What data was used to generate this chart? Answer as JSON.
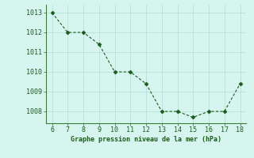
{
  "x": [
    6,
    7,
    8,
    9,
    10,
    11,
    12,
    13,
    14,
    15,
    16,
    17,
    18
  ],
  "y": [
    1013.0,
    1012.0,
    1012.0,
    1011.4,
    1010.0,
    1010.0,
    1009.4,
    1008.0,
    1008.0,
    1007.7,
    1008.0,
    1008.0,
    1009.4
  ],
  "line_color": "#1a5c1a",
  "marker": "D",
  "marker_size": 2.5,
  "bg_color": "#d6f5ef",
  "grid_color": "#b0ddd4",
  "xlabel": "Graphe pression niveau de la mer (hPa)",
  "xlabel_color": "#1a5c1a",
  "xlabel_fontsize": 6.0,
  "tick_color": "#1a5c1a",
  "tick_fontsize": 6.0,
  "xlim": [
    5.6,
    18.4
  ],
  "ylim": [
    1007.4,
    1013.4
  ],
  "yticks": [
    1008,
    1009,
    1010,
    1011,
    1012,
    1013
  ],
  "xticks": [
    6,
    7,
    8,
    9,
    10,
    11,
    12,
    13,
    14,
    15,
    16,
    17,
    18
  ]
}
